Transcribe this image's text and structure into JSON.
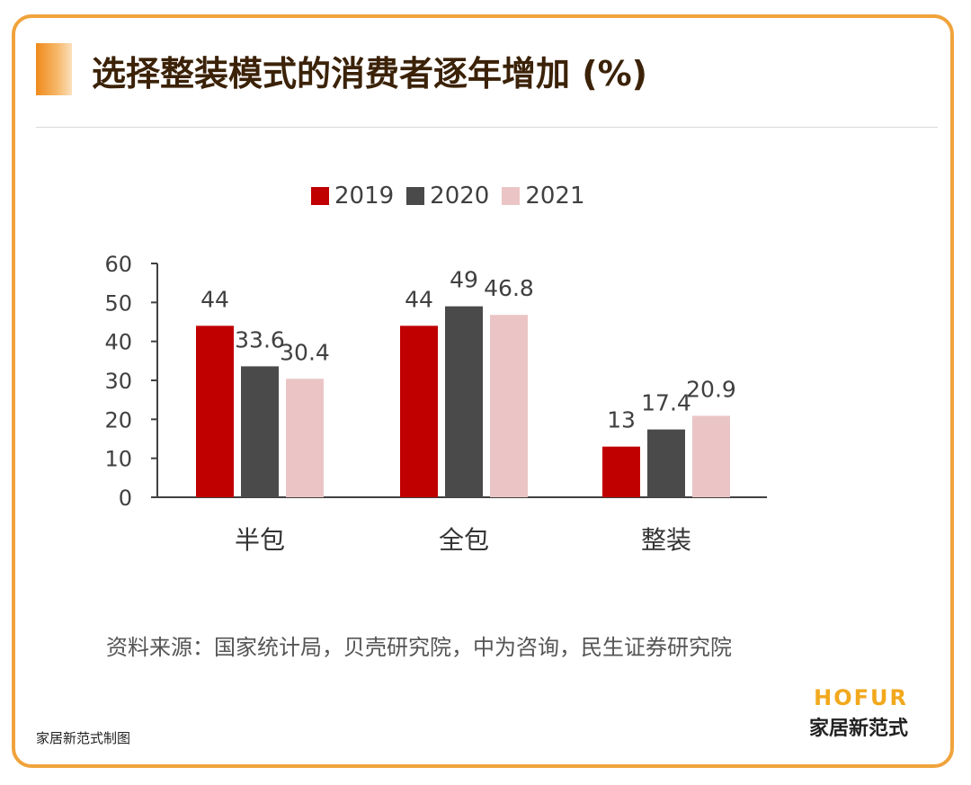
{
  "header": {
    "title": "选择整装模式的消费者逐年增加 (%)"
  },
  "chart_data": {
    "type": "bar",
    "title": "",
    "xlabel": "",
    "ylabel": "",
    "categories": [
      "半包",
      "全包",
      "整装"
    ],
    "series": [
      {
        "name": "2019",
        "values": [
          44,
          44,
          13
        ],
        "color": "#c00000"
      },
      {
        "name": "2020",
        "values": [
          33.6,
          49,
          17.4
        ],
        "color": "#4a4a4a"
      },
      {
        "name": "2021",
        "values": [
          30.4,
          46.8,
          20.9
        ],
        "color": "#ebc5c5"
      }
    ],
    "data_labels": [
      [
        "44",
        "44",
        "13"
      ],
      [
        "33.6",
        "49",
        "17.4"
      ],
      [
        "30.4",
        "46.8",
        "20.9"
      ]
    ],
    "y_ticks": [
      "0",
      "10",
      "20",
      "30",
      "40",
      "50",
      "60"
    ],
    "ylim": [
      0,
      60
    ],
    "grid": false,
    "legend_position": "top"
  },
  "footer": {
    "source": "资料来源：国家统计局，贝壳研究院，中为咨询，民生证券研究院",
    "brand_en": "HOFUR",
    "brand_cn": "家居新范式",
    "note": "家居新范式制图"
  }
}
